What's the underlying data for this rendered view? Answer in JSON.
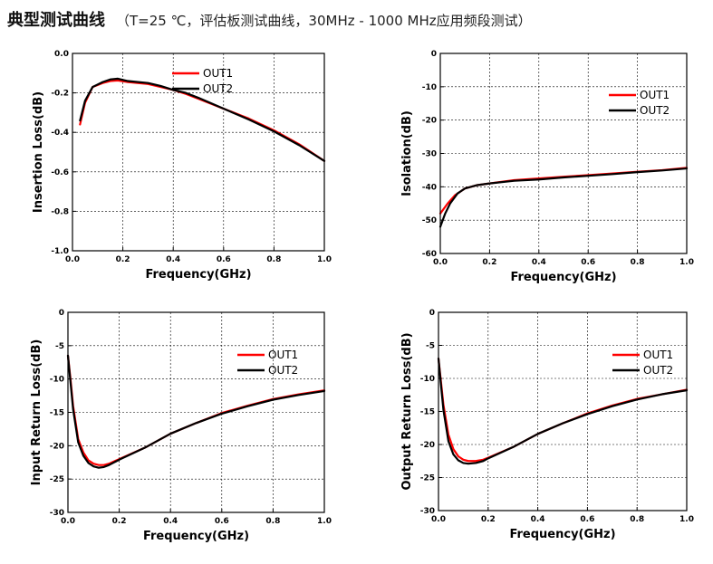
{
  "header": {
    "title": "典型测试曲线",
    "subtitle": "（T=25 ℃，评估板测试曲线，30MHz - 1000 MHz应用频段测试）"
  },
  "colors": {
    "out1": "#ff0000",
    "out2": "#000000",
    "grid": "#000000"
  },
  "chart_data": [
    {
      "type": "line",
      "xlabel": "Frequency(GHz)",
      "ylabel": "Insertion Loss(dB)",
      "xlim": [
        0,
        1.0
      ],
      "ylim": [
        -1.0,
        0.0
      ],
      "xticks": [
        0.0,
        0.2,
        0.4,
        0.6,
        0.8,
        1.0
      ],
      "xtick_labels": [
        "0.0",
        "0.2",
        "0.4",
        "0.6",
        "0.8",
        "1.0"
      ],
      "yticks": [
        -1.0,
        -0.8,
        -0.6,
        -0.4,
        -0.2,
        0.0
      ],
      "ytick_labels": [
        "-1.0",
        "-0.8",
        "-0.6",
        "-0.4",
        "-0.2",
        "0.0"
      ],
      "legend_position": "top-right",
      "series": [
        {
          "name": "OUT1",
          "color": "#ff0000",
          "x": [
            0.03,
            0.05,
            0.08,
            0.12,
            0.15,
            0.18,
            0.22,
            0.3,
            0.35,
            0.4,
            0.45,
            0.5,
            0.6,
            0.7,
            0.8,
            0.9,
            1.0
          ],
          "y": [
            -0.36,
            -0.25,
            -0.17,
            -0.15,
            -0.14,
            -0.137,
            -0.145,
            -0.155,
            -0.17,
            -0.185,
            -0.205,
            -0.23,
            -0.28,
            -0.33,
            -0.39,
            -0.46,
            -0.545
          ]
        },
        {
          "name": "OUT2",
          "color": "#000000",
          "x": [
            0.03,
            0.05,
            0.08,
            0.12,
            0.15,
            0.18,
            0.22,
            0.3,
            0.35,
            0.4,
            0.45,
            0.5,
            0.6,
            0.7,
            0.8,
            0.9,
            1.0
          ],
          "y": [
            -0.34,
            -0.24,
            -0.17,
            -0.145,
            -0.132,
            -0.128,
            -0.14,
            -0.15,
            -0.165,
            -0.185,
            -0.2,
            -0.225,
            -0.28,
            -0.335,
            -0.395,
            -0.465,
            -0.545
          ]
        }
      ]
    },
    {
      "type": "line",
      "xlabel": "Frequency(GHz)",
      "ylabel": "Isolation(dB)",
      "xlim": [
        0,
        1.0
      ],
      "ylim": [
        -60,
        0
      ],
      "xticks": [
        0.0,
        0.2,
        0.4,
        0.6,
        0.8,
        1.0
      ],
      "xtick_labels": [
        "0.0",
        "0.2",
        "0.4",
        "0.6",
        "0.8",
        "1.0"
      ],
      "yticks": [
        -60,
        -50,
        -40,
        -30,
        -20,
        -10,
        0
      ],
      "ytick_labels": [
        "-60",
        "-50",
        "-40",
        "-30",
        "-20",
        "-10",
        "0"
      ],
      "legend_position": "top-right",
      "series": [
        {
          "name": "OUT1",
          "color": "#ff0000",
          "x": [
            0.0,
            0.03,
            0.06,
            0.1,
            0.15,
            0.2,
            0.3,
            0.4,
            0.5,
            0.6,
            0.7,
            0.8,
            0.9,
            1.0
          ],
          "y": [
            -48,
            -45,
            -42.5,
            -40.5,
            -39.5,
            -39,
            -38,
            -37.5,
            -37,
            -36.5,
            -36,
            -35.5,
            -35,
            -34.3
          ]
        },
        {
          "name": "OUT2",
          "color": "#000000",
          "x": [
            0.0,
            0.02,
            0.04,
            0.07,
            0.1,
            0.15,
            0.2,
            0.3,
            0.4,
            0.5,
            0.6,
            0.7,
            0.8,
            0.9,
            1.0
          ],
          "y": [
            -52,
            -48,
            -45,
            -42,
            -40.5,
            -39.5,
            -39,
            -38.2,
            -37.8,
            -37.2,
            -36.7,
            -36.2,
            -35.6,
            -35.1,
            -34.5
          ]
        }
      ]
    },
    {
      "type": "line",
      "xlabel": "Frequency(GHz)",
      "ylabel": "Input Return Loss(dB)",
      "xlim": [
        0,
        1.0
      ],
      "ylim": [
        -30,
        0
      ],
      "xticks": [
        0.0,
        0.2,
        0.4,
        0.6,
        0.8,
        1.0
      ],
      "xtick_labels": [
        "0.0",
        "0.2",
        "0.4",
        "0.6",
        "0.8",
        "1.0"
      ],
      "yticks": [
        -30,
        -25,
        -20,
        -15,
        -10,
        -5,
        0
      ],
      "ytick_labels": [
        "-30",
        "-25",
        "-20",
        "-15",
        "-10",
        "-5",
        "0"
      ],
      "legend_position": "top-right",
      "series": [
        {
          "name": "OUT1",
          "color": "#ff0000",
          "x": [
            0.0,
            0.01,
            0.02,
            0.04,
            0.06,
            0.08,
            0.1,
            0.12,
            0.14,
            0.16,
            0.2,
            0.3,
            0.4,
            0.5,
            0.6,
            0.7,
            0.8,
            0.9,
            1.0
          ],
          "y": [
            -6.5,
            -10,
            -14,
            -19,
            -21,
            -22.2,
            -22.7,
            -22.9,
            -22.9,
            -22.7,
            -22,
            -20.3,
            -18.2,
            -16.6,
            -15.1,
            -14,
            -13,
            -12.3,
            -11.7
          ]
        },
        {
          "name": "OUT2",
          "color": "#000000",
          "x": [
            0.0,
            0.01,
            0.02,
            0.04,
            0.06,
            0.08,
            0.1,
            0.12,
            0.14,
            0.16,
            0.2,
            0.3,
            0.4,
            0.5,
            0.6,
            0.7,
            0.8,
            0.9,
            1.0
          ],
          "y": [
            -6.5,
            -10.5,
            -14.5,
            -19.5,
            -21.5,
            -22.6,
            -23.1,
            -23.3,
            -23.2,
            -22.9,
            -22.1,
            -20.3,
            -18.2,
            -16.6,
            -15.2,
            -14.1,
            -13.1,
            -12.4,
            -11.8
          ]
        }
      ]
    },
    {
      "type": "line",
      "xlabel": "Frequency(GHz)",
      "ylabel": "Output Return Loss(dB)",
      "xlim": [
        0,
        1.0
      ],
      "ylim": [
        -30,
        0
      ],
      "xticks": [
        0.0,
        0.2,
        0.4,
        0.6,
        0.8,
        1.0
      ],
      "xtick_labels": [
        "0.0",
        "0.2",
        "0.4",
        "0.6",
        "0.8",
        "1.0"
      ],
      "yticks": [
        -30,
        -25,
        -20,
        -15,
        -10,
        -5,
        0
      ],
      "ytick_labels": [
        "-30",
        "-25",
        "-20",
        "-15",
        "-10",
        "-5",
        "0"
      ],
      "legend_position": "top-right",
      "series": [
        {
          "name": "OUT1",
          "color": "#ff0000",
          "x": [
            0.0,
            0.01,
            0.02,
            0.04,
            0.06,
            0.08,
            0.1,
            0.12,
            0.15,
            0.18,
            0.2,
            0.3,
            0.4,
            0.5,
            0.6,
            0.7,
            0.8,
            0.9,
            1.0
          ],
          "y": [
            -7,
            -10.5,
            -14,
            -18.5,
            -20.7,
            -21.8,
            -22.3,
            -22.5,
            -22.5,
            -22.3,
            -22,
            -20.4,
            -18.4,
            -16.8,
            -15.3,
            -14.1,
            -13.1,
            -12.4,
            -11.7
          ]
        },
        {
          "name": "OUT2",
          "color": "#000000",
          "x": [
            0.0,
            0.01,
            0.02,
            0.04,
            0.06,
            0.08,
            0.1,
            0.12,
            0.15,
            0.18,
            0.2,
            0.3,
            0.4,
            0.5,
            0.6,
            0.7,
            0.8,
            0.9,
            1.0
          ],
          "y": [
            -7,
            -11,
            -14.8,
            -19.5,
            -21.5,
            -22.4,
            -22.8,
            -22.9,
            -22.8,
            -22.5,
            -22.1,
            -20.4,
            -18.4,
            -16.8,
            -15.4,
            -14.2,
            -13.2,
            -12.4,
            -11.8
          ]
        }
      ]
    }
  ]
}
